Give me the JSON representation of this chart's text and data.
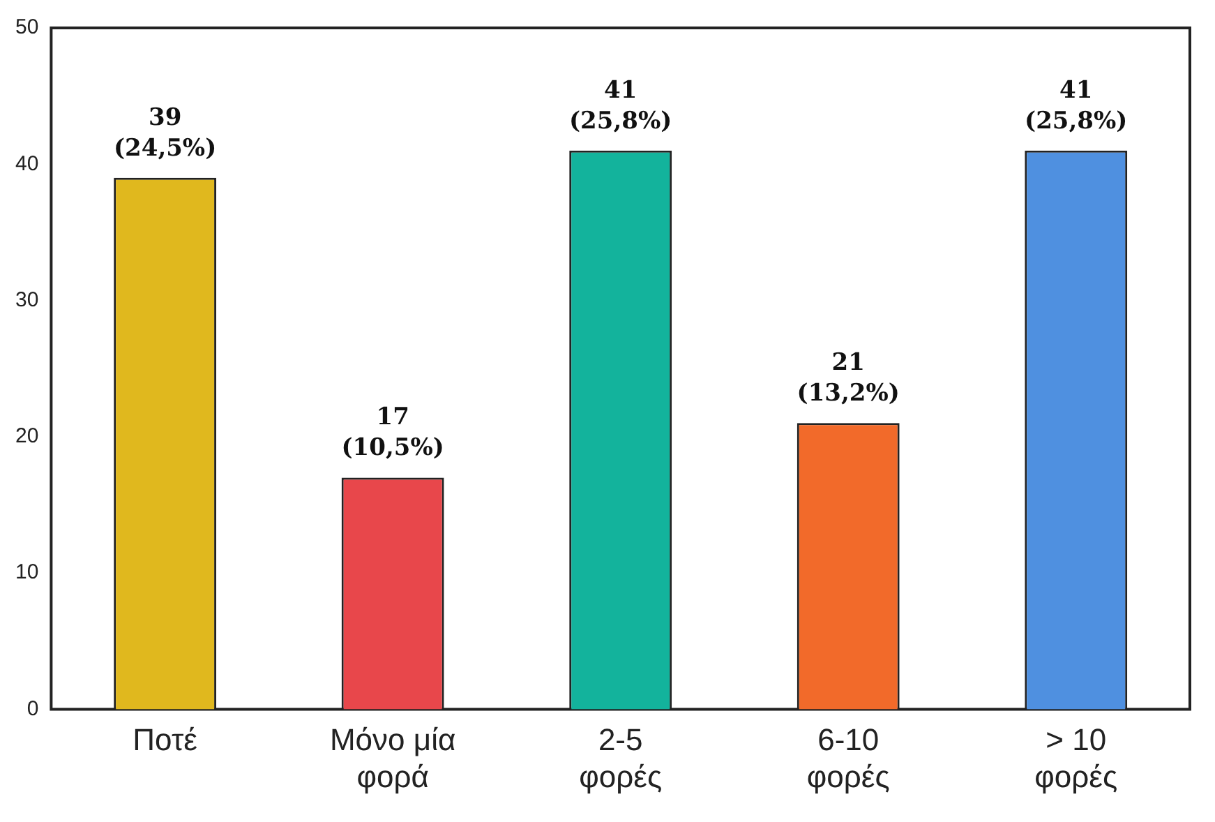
{
  "chart_data": {
    "type": "bar",
    "categories": [
      "Ποτέ",
      "Μόνο μία φορά",
      "2-5 φορές",
      "6-10 φορές",
      "> 10 φορές"
    ],
    "values": [
      39,
      17,
      41,
      21,
      41
    ],
    "colors": [
      "#e0b81e",
      "#e8474b",
      "#13b39c",
      "#f26a2a",
      "#4f90e0"
    ],
    "value_labels": [
      "39 (24,5%)",
      "17 (10,5%)",
      "41 (25,8%)",
      "21 (13,2%)",
      "41 (25,8%)"
    ],
    "ylim": [
      0,
      50
    ],
    "yticks": [
      0,
      10,
      20,
      30,
      40,
      50
    ],
    "grid": false,
    "legend": false
  }
}
